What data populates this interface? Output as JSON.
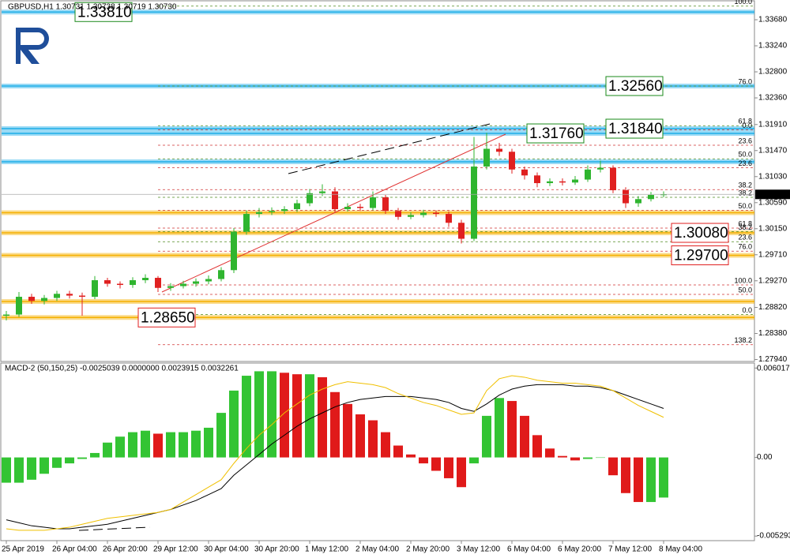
{
  "chart_data": [
    {
      "type": "candlestick",
      "title": "GBPUSD,H1  1.30731 1.30738 1.30719 1.30730",
      "categories": [
        "25 Apr 2019",
        null,
        null,
        null,
        "26 Apr 04:00",
        null,
        null,
        null,
        "26 Apr 20:00",
        null,
        null,
        null,
        "29 Apr 12:00",
        null,
        null,
        null,
        "30 Apr 04:00",
        null,
        null,
        null,
        "30 Apr 20:00",
        null,
        null,
        null,
        "1 May 12:00",
        null,
        null,
        null,
        "2 May 04:00",
        null,
        null,
        null,
        "2 May 20:00",
        null,
        null,
        null,
        "3 May 12:00",
        null,
        null,
        null,
        "6 May 04:00",
        null,
        null,
        null,
        "6 May 20:00",
        null,
        null,
        null,
        "7 May 12:00",
        null,
        null,
        null,
        "8 May 04:00"
      ],
      "open": [
        1.2868,
        1.287,
        1.29,
        1.2893,
        1.2898,
        1.2905,
        1.2902,
        1.29,
        1.2928,
        1.2922,
        1.292,
        1.2928,
        1.2932,
        1.2915,
        1.2918,
        1.2922,
        1.2926,
        1.293,
        1.2945,
        1.301,
        1.304,
        1.3043,
        1.3045,
        1.3048,
        1.3058,
        1.3075,
        1.3078,
        1.3048,
        1.3052,
        1.305,
        1.3068,
        1.3045,
        1.3035,
        1.3038,
        1.3042,
        1.304,
        1.3025,
        1.2998,
        1.312,
        1.315,
        1.3145,
        1.3115,
        1.3105,
        1.3092,
        1.3095,
        1.3093,
        1.3098,
        1.3115,
        1.3118,
        1.308,
        1.3058,
        1.3065,
        1.3072
      ],
      "high": [
        1.2876,
        1.2908,
        1.2905,
        1.2903,
        1.291,
        1.291,
        1.2907,
        1.2935,
        1.2932,
        1.2926,
        1.2933,
        1.2938,
        1.2935,
        1.2923,
        1.2927,
        1.2931,
        1.2936,
        1.295,
        1.3016,
        1.3046,
        1.305,
        1.3051,
        1.3053,
        1.3064,
        1.3082,
        1.309,
        1.3085,
        1.3058,
        1.3057,
        1.3078,
        1.3072,
        1.305,
        1.3043,
        1.3047,
        1.3046,
        1.3044,
        1.303,
        1.317,
        1.3177,
        1.316,
        1.315,
        1.312,
        1.311,
        1.31,
        1.31,
        1.3104,
        1.3122,
        1.313,
        1.3122,
        1.3085,
        1.307,
        1.3077,
        1.3078
      ],
      "low": [
        1.286,
        1.2866,
        1.2888,
        1.2887,
        1.2893,
        1.2897,
        1.2868,
        1.2896,
        1.2917,
        1.2914,
        1.2915,
        1.2923,
        1.2908,
        1.291,
        1.2914,
        1.2917,
        1.2921,
        1.2926,
        1.294,
        1.3005,
        1.3034,
        1.3038,
        1.304,
        1.3043,
        1.3053,
        1.307,
        1.3043,
        1.3044,
        1.3045,
        1.3046,
        1.304,
        1.303,
        1.3031,
        1.3034,
        1.3035,
        1.3018,
        1.299,
        1.2994,
        1.3115,
        1.3138,
        1.3108,
        1.3098,
        1.3085,
        1.3087,
        1.3088,
        1.3089,
        1.3094,
        1.311,
        1.3075,
        1.305,
        1.3052,
        1.3061,
        1.3068
      ],
      "close": [
        1.287,
        1.29,
        1.2893,
        1.2898,
        1.2905,
        1.2902,
        1.29,
        1.2928,
        1.2922,
        1.292,
        1.2928,
        1.2932,
        1.2915,
        1.2918,
        1.2922,
        1.2926,
        1.293,
        1.2945,
        1.301,
        1.304,
        1.3043,
        1.3045,
        1.3048,
        1.3058,
        1.3075,
        1.3078,
        1.3048,
        1.3052,
        1.305,
        1.3068,
        1.3045,
        1.3035,
        1.3038,
        1.3042,
        1.304,
        1.3025,
        1.2998,
        1.312,
        1.315,
        1.3145,
        1.3115,
        1.3105,
        1.3092,
        1.3095,
        1.3093,
        1.3098,
        1.3115,
        1.3118,
        1.308,
        1.3058,
        1.3065,
        1.3072,
        1.3073
      ],
      "up_color": "#2fb52f",
      "down_color": "#e02020",
      "ylim": [
        1.27907,
        1.33947
      ],
      "yticks": [
        {
          "value": 1.3368,
          "label": "1.33680"
        },
        {
          "value": 1.3324,
          "label": "1.33240"
        },
        {
          "value": 1.328,
          "label": "1.32800"
        },
        {
          "value": 1.3236,
          "label": "1.32360"
        },
        {
          "value": 1.3191,
          "label": "1.31910"
        },
        {
          "value": 1.3147,
          "label": "1.31470"
        },
        {
          "value": 1.3103,
          "label": "1.31030"
        },
        {
          "value": 1.3059,
          "label": "1.30590"
        },
        {
          "value": 1.3015,
          "label": "1.30150"
        },
        {
          "value": 1.2971,
          "label": "1.29710"
        },
        {
          "value": 1.2927,
          "label": "1.29270"
        },
        {
          "value": 1.2882,
          "label": "1.28820"
        },
        {
          "value": 1.2838,
          "label": "1.28380"
        },
        {
          "value": 1.2794,
          "label": "1.27940"
        }
      ],
      "current_price": {
        "value": 1.3073,
        "label": "1.30730"
      },
      "levels": [
        {
          "value": 1.3381,
          "label": "1.33810",
          "color": "#1eaee8",
          "label_color": "#1a8a1a"
        },
        {
          "value": 1.3256,
          "label": "1.32560",
          "color": "#1eaee8",
          "label_color": "#1a8a1a"
        },
        {
          "value": 1.3184,
          "label": "1.31840",
          "color": "#1eaee8",
          "label_color": "#1a8a1a"
        },
        {
          "value": 1.3176,
          "label": "1.31760",
          "color": "#1eaee8",
          "label_color": "#1a8a1a"
        },
        {
          "value": 1.3128,
          "color": "#1eaee8"
        },
        {
          "value": 1.3042,
          "color": "#f5b000"
        },
        {
          "value": 1.3008,
          "label": "1.30080",
          "color": "#f5b000",
          "label_color": "#e02020"
        },
        {
          "value": 1.297,
          "label": "1.29700",
          "color": "#f5b000",
          "label_color": "#e02020"
        },
        {
          "value": 1.2892,
          "color": "#f5b000"
        },
        {
          "value": 1.2865,
          "label": "1.28650",
          "color": "#f5b000",
          "label_color": "#e02020"
        }
      ],
      "fib_levels": [
        {
          "label": "100.0",
          "value": 1.3391,
          "color": "#4d8a1e"
        },
        {
          "label": "76.0",
          "value": 1.3256,
          "color": "#4d8a1e"
        },
        {
          "label": "61.8",
          "value": 1.3189,
          "color": "#4d8a1e"
        },
        {
          "label": "0.0",
          "value": 1.3182,
          "color": "#d03030"
        },
        {
          "label": "23.6",
          "value": 1.3156,
          "color": "#d03030"
        },
        {
          "label": "50.0",
          "value": 1.3133,
          "color": "#4d8a1e"
        },
        {
          "label": "23.6",
          "value": 1.3118,
          "color": "#d03030"
        },
        {
          "label": "38.2",
          "value": 1.3081,
          "color": "#d03030"
        },
        {
          "label": "38.2",
          "value": 1.3068,
          "color": "#4d8a1e"
        },
        {
          "label": "50.0",
          "value": 1.3046,
          "color": "#d03030"
        },
        {
          "label": "61.8",
          "value": 1.3016,
          "color": "#d03030"
        },
        {
          "label": "38.2",
          "value": 1.301,
          "color": "#4d8a1e"
        },
        {
          "label": "23.6",
          "value": 1.2993,
          "color": "#4d8a1e"
        },
        {
          "label": "76.0",
          "value": 1.2977,
          "color": "#d03030"
        },
        {
          "label": "100.0",
          "value": 1.292,
          "color": "#d03030"
        },
        {
          "label": "50.0",
          "value": 1.2904,
          "color": "#d03030"
        },
        {
          "label": "0.0",
          "value": 1.287,
          "color": "#4d8a1e"
        },
        {
          "label": "138.2",
          "value": 1.2819,
          "color": "#d03030"
        }
      ]
    },
    {
      "type": "macd",
      "title": "MACD-2 (50,150,25) -0.0025039 0.0000000 0.0023915 0.0032261",
      "values": [
        -0.0017,
        -0.0017,
        -0.0015,
        -0.0011,
        -0.0007,
        -0.0004,
        -0.0001,
        0.0003,
        0.001,
        0.0014,
        0.0017,
        0.0018,
        0.0016,
        0.0017,
        0.0017,
        0.0018,
        0.002,
        0.003,
        0.0045,
        0.0055,
        0.0058,
        0.0058,
        0.0057,
        0.0056,
        0.0056,
        0.0054,
        0.0044,
        0.0036,
        0.0029,
        0.0025,
        0.0017,
        0.0008,
        0.0002,
        -0.0004,
        -0.0009,
        -0.0014,
        -0.002,
        -0.0004,
        0.0028,
        0.004,
        0.0038,
        0.0028,
        0.0015,
        0.0006,
        0.0001,
        -0.0002,
        -0.0001,
        0.0,
        -0.0012,
        -0.0024,
        -0.003,
        -0.003,
        -0.0027
      ],
      "up_color": "#33c433",
      "down_color": "#e01a1a",
      "series": [
        {
          "color": "#000000",
          "values": [
            -0.0042,
            -0.0044,
            -0.0046,
            -0.0047,
            -0.0048,
            -0.0048,
            -0.0047,
            -0.0046,
            -0.0045,
            -0.0043,
            -0.0041,
            -0.0039,
            -0.0037,
            -0.0035,
            -0.0032,
            -0.0029,
            -0.0025,
            -0.0021,
            -0.0012,
            -0.0005,
            0.0002,
            0.0009,
            0.0015,
            0.0021,
            0.0026,
            0.003,
            0.0034,
            0.0037,
            0.0039,
            0.004,
            0.0041,
            0.0041,
            0.0041,
            0.004,
            0.0039,
            0.0037,
            0.0033,
            0.0031,
            0.0036,
            0.0042,
            0.0046,
            0.0048,
            0.0049,
            0.0049,
            0.0049,
            0.0048,
            0.0048,
            0.0047,
            0.0045,
            0.0042,
            0.0039,
            0.0036,
            0.0033
          ]
        },
        {
          "color": "#f0c000",
          "values": [
            -0.0048,
            -0.0049,
            -0.0049,
            -0.0049,
            -0.0048,
            -0.0047,
            -0.0045,
            -0.0043,
            -0.0041,
            -0.004,
            -0.0039,
            -0.0038,
            -0.0037,
            -0.0035,
            -0.003,
            -0.0025,
            -0.002,
            -0.0015,
            -0.0004,
            0.0006,
            0.0015,
            0.0022,
            0.003,
            0.0036,
            0.0042,
            0.0046,
            0.0049,
            0.0051,
            0.005,
            0.0049,
            0.0047,
            0.0043,
            0.004,
            0.0037,
            0.0035,
            0.0032,
            0.0029,
            0.003,
            0.0045,
            0.0053,
            0.0055,
            0.0054,
            0.0052,
            0.0051,
            0.005,
            0.005,
            0.0049,
            0.0048,
            0.0045,
            0.004,
            0.0035,
            0.0031,
            0.0027
          ]
        }
      ],
      "ylim": [
        -0.0056,
        0.0063
      ],
      "yticks": [
        0.0060175,
        {
          "value": 0,
          "label": "0.00"
        },
        -0.0052933
      ]
    }
  ]
}
